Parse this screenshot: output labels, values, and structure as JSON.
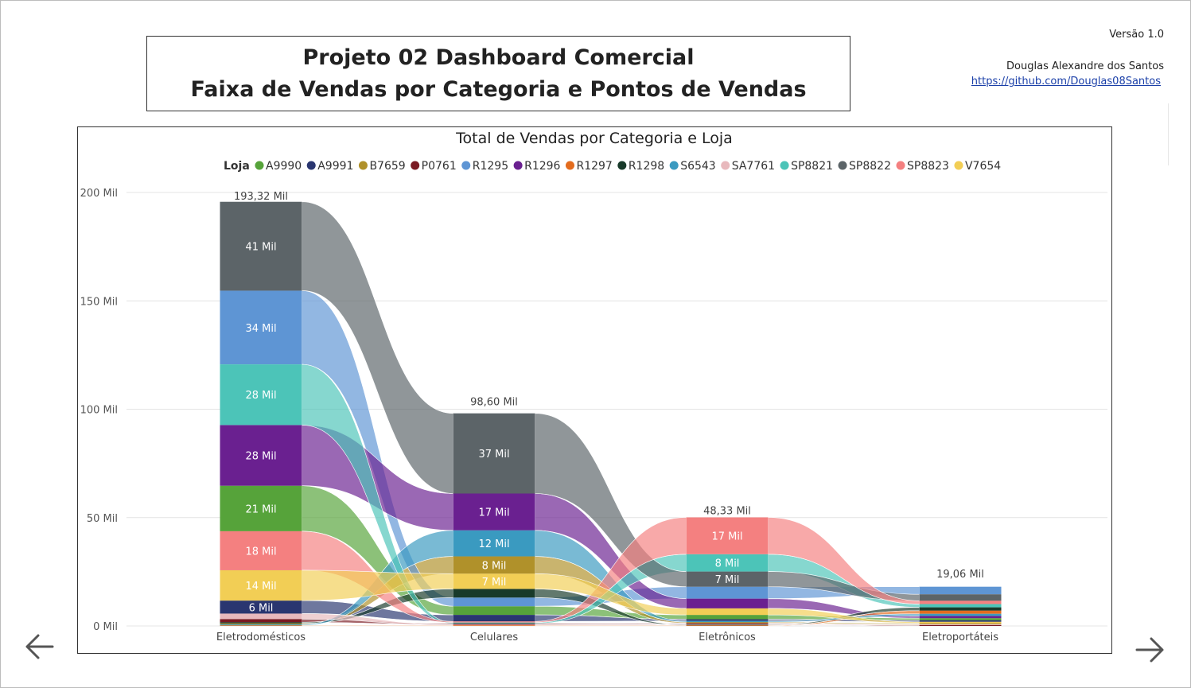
{
  "page": {
    "title_line1": "Projeto 02 Dashboard Comercial",
    "title_line2": "Faixa de Vendas por Categoria e Pontos de Vendas",
    "version": "Versão 1.0",
    "author": "Douglas Alexandre dos Santos",
    "link": "https://github.com/Douglas08Santos",
    "nav_prev_icon": "arrow-left-icon",
    "nav_next_icon": "arrow-right-icon"
  },
  "chart_data": {
    "type": "ribbon",
    "title": "Total de Vendas por Categoria e Loja",
    "legend_title": "Loja",
    "legend_placement": "top",
    "categories": [
      "Eletrodomésticos",
      "Celulares",
      "Eletrônicos",
      "Eletroportáteis"
    ],
    "totals": [
      193.32,
      98.6,
      48.33,
      19.06
    ],
    "total_labels": [
      "193,32 Mil",
      "98,60 Mil",
      "48,33 Mil",
      "19,06 Mil"
    ],
    "ylim": [
      0,
      200
    ],
    "yticks": [
      0,
      50,
      100,
      150,
      200
    ],
    "ytick_labels": [
      "0 Mil",
      "50 Mil",
      "100 Mil",
      "150 Mil",
      "200 Mil"
    ],
    "grid": true,
    "series": [
      {
        "name": "A9990",
        "color": "#56a33a",
        "values": [
          21,
          4,
          2,
          1.0
        ]
      },
      {
        "name": "A9991",
        "color": "#2a3670",
        "values": [
          6,
          3,
          0.8,
          0.7
        ]
      },
      {
        "name": "B7659",
        "color": "#b0912a",
        "values": [
          0.5,
          8,
          0.5,
          0.5
        ]
      },
      {
        "name": "P0761",
        "color": "#7a1a22",
        "values": [
          1.5,
          0.5,
          0.4,
          0.4
        ]
      },
      {
        "name": "R1295",
        "color": "#5e95d4",
        "values": [
          34,
          4,
          5.5,
          3.5
        ]
      },
      {
        "name": "R1296",
        "color": "#6a2090",
        "values": [
          28,
          17,
          4.5,
          1.0
        ]
      },
      {
        "name": "R1297",
        "color": "#e36c1e",
        "values": [
          0.3,
          0.3,
          0.3,
          1.5
        ]
      },
      {
        "name": "R1298",
        "color": "#183a2a",
        "values": [
          0.5,
          4,
          0.3,
          1.5
        ]
      },
      {
        "name": "S6543",
        "color": "#3a9ac0",
        "values": [
          0.4,
          12,
          0.5,
          1.0
        ]
      },
      {
        "name": "SA7761",
        "color": "#e8b9bd",
        "values": [
          2.5,
          0.3,
          0.3,
          0.4
        ]
      },
      {
        "name": "SP8821",
        "color": "#4cc4b8",
        "values": [
          28,
          0.5,
          8,
          1.5
        ]
      },
      {
        "name": "SP8822",
        "color": "#5c6468",
        "values": [
          41,
          37,
          7,
          3.0
        ]
      },
      {
        "name": "SP8823",
        "color": "#f48080",
        "values": [
          18,
          0.5,
          17,
          1.5
        ]
      },
      {
        "name": "V7654",
        "color": "#f2ce55",
        "values": [
          14,
          7,
          3,
          0.6
        ]
      }
    ],
    "data_labels": [
      {
        "category": "Eletrodomésticos",
        "series": "SP8822",
        "text": "41 Mil"
      },
      {
        "category": "Eletrodomésticos",
        "series": "R1295",
        "text": "34 Mil"
      },
      {
        "category": "Eletrodomésticos",
        "series": "SP8821",
        "text": "28 Mil"
      },
      {
        "category": "Eletrodomésticos",
        "series": "R1296",
        "text": "28 Mil"
      },
      {
        "category": "Eletrodomésticos",
        "series": "A9990",
        "text": "21 Mil"
      },
      {
        "category": "Eletrodomésticos",
        "series": "SP8823",
        "text": "18 Mil"
      },
      {
        "category": "Eletrodomésticos",
        "series": "V7654",
        "text": "14 Mil"
      },
      {
        "category": "Eletrodomésticos",
        "series": "A9991",
        "text": "6 Mil"
      },
      {
        "category": "Celulares",
        "series": "SP8822",
        "text": "37 Mil"
      },
      {
        "category": "Celulares",
        "series": "R1296",
        "text": "17 Mil"
      },
      {
        "category": "Celulares",
        "series": "S6543",
        "text": "12 Mil"
      },
      {
        "category": "Celulares",
        "series": "B7659",
        "text": "8 Mil"
      },
      {
        "category": "Celulares",
        "series": "V7654",
        "text": "7 Mil"
      },
      {
        "category": "Eletrônicos",
        "series": "SP8823",
        "text": "17 Mil"
      },
      {
        "category": "Eletrônicos",
        "series": "SP8821",
        "text": "8 Mil"
      },
      {
        "category": "Eletrônicos",
        "series": "SP8822",
        "text": "7 Mil"
      }
    ]
  }
}
